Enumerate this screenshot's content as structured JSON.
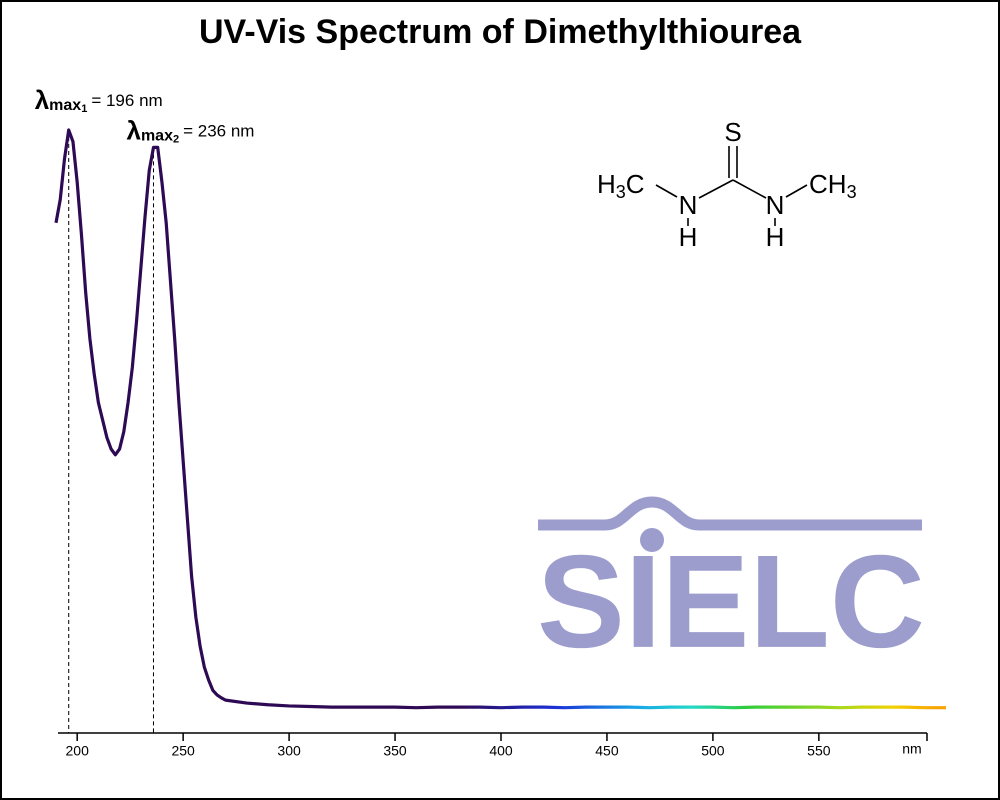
{
  "chart_data": {
    "type": "line",
    "title": "UV-Vis Spectrum of Dimethylthiourea",
    "x_label": "nm",
    "x": [
      190,
      192,
      194,
      196,
      198,
      200,
      202,
      204,
      206,
      208,
      210,
      212,
      214,
      216,
      218,
      220,
      222,
      224,
      226,
      228,
      230,
      232,
      234,
      236,
      238,
      240,
      242,
      244,
      246,
      248,
      250,
      252,
      254,
      256,
      258,
      260,
      262,
      264,
      266,
      268,
      270,
      280,
      290,
      300,
      310,
      320,
      330,
      340,
      350,
      360,
      370,
      380,
      390,
      400,
      410,
      420,
      430,
      440,
      450,
      460,
      470,
      480,
      490,
      500,
      510,
      520,
      530,
      540,
      550,
      560,
      570,
      580,
      590,
      600,
      610
    ],
    "values": [
      0.84,
      0.88,
      0.95,
      1.0,
      0.98,
      0.91,
      0.82,
      0.72,
      0.64,
      0.58,
      0.53,
      0.5,
      0.47,
      0.45,
      0.44,
      0.45,
      0.48,
      0.53,
      0.59,
      0.67,
      0.76,
      0.85,
      0.93,
      0.97,
      0.97,
      0.91,
      0.84,
      0.74,
      0.64,
      0.53,
      0.43,
      0.33,
      0.23,
      0.16,
      0.11,
      0.074,
      0.052,
      0.034,
      0.026,
      0.021,
      0.017,
      0.012,
      0.009,
      0.007,
      0.006,
      0.005,
      0.005,
      0.005,
      0.005,
      0.004,
      0.005,
      0.005,
      0.005,
      0.004,
      0.005,
      0.005,
      0.004,
      0.005,
      0.005,
      0.005,
      0.004,
      0.005,
      0.005,
      0.005,
      0.004,
      0.005,
      0.005,
      0.005,
      0.005,
      0.004,
      0.005,
      0.005,
      0.005,
      0.004,
      0.004
    ],
    "color_stops": [
      {
        "x": 380,
        "color": "#2e0a55"
      },
      {
        "x": 425,
        "color": "#1c2fd6"
      },
      {
        "x": 465,
        "color": "#18a8e8"
      },
      {
        "x": 490,
        "color": "#22d8c8"
      },
      {
        "x": 515,
        "color": "#2ccc3c"
      },
      {
        "x": 560,
        "color": "#a8d81c"
      },
      {
        "x": 585,
        "color": "#f2d200"
      },
      {
        "x": 605,
        "color": "#f8a400"
      }
    ],
    "xlim": [
      190,
      610
    ],
    "ylim": [
      0,
      1.1
    ],
    "xticks": [
      200,
      250,
      300,
      350,
      400,
      450,
      500,
      550
    ],
    "annotations": [
      {
        "symbol": "λ",
        "subscript": "max",
        "index": "1",
        "text": "= 196 nm",
        "x": 196
      },
      {
        "symbol": "λ",
        "subscript": "max",
        "index": "2",
        "text": "= 236 nm",
        "x": 236
      }
    ],
    "structure": {
      "atoms": [
        "S",
        "N",
        "H",
        "N",
        "H"
      ],
      "left_group": [
        "H",
        "3",
        "C"
      ],
      "right_group": [
        "CH",
        "3"
      ]
    },
    "watermark": "SIELC"
  }
}
